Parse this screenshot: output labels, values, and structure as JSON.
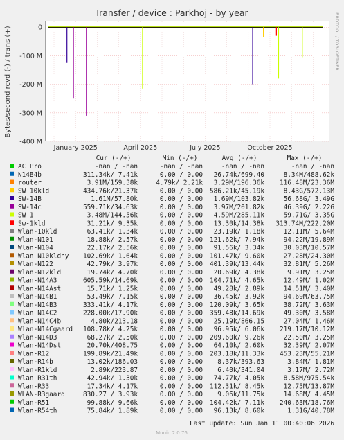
{
  "chart_data": {
    "type": "line",
    "title": "Transfer / device : Parkhoj - by year",
    "ylabel": "Bytes/second rcvd (-) / trans (+)",
    "ylim": [
      -400000000,
      20000000
    ],
    "yticks": [
      {
        "value": 0,
        "label": "0"
      },
      {
        "value": -100000000,
        "label": "-100 M"
      },
      {
        "value": -200000000,
        "label": "-200 M"
      },
      {
        "value": -300000000,
        "label": "-300 M"
      },
      {
        "value": -400000000,
        "label": "-400 M"
      }
    ],
    "xticks": [
      "January 2025",
      "April 2025",
      "July 2025",
      "October 2025"
    ],
    "side_text": "RRDTOOL / TOBI OETIKER",
    "footer": "Munin 2.0.76",
    "last_update": "Last update:  Sun Jan 11 00:40:06 2026",
    "columns": [
      "Cur (-/+)",
      "Min (-/+)",
      "Avg (-/+)",
      "Max (-/+)"
    ],
    "spikes": [
      {
        "series": "SW-14B",
        "month": 0.6,
        "value": -125000000
      },
      {
        "series": "SW-14c",
        "month": 0.9,
        "value": -250000000
      },
      {
        "series": "SW-14c",
        "month": 1.5,
        "value": -310000000
      },
      {
        "series": "SW-14B",
        "month": 9.2,
        "value": -200000000
      },
      {
        "series": "SW-1",
        "month": 4.1,
        "value": -215000000
      },
      {
        "series": "SW-1",
        "month": 10.4,
        "value": -180000000
      },
      {
        "series": "SW-1",
        "month": 11.5,
        "value": -105000000
      },
      {
        "series": "SW-10kld",
        "month": 9.7,
        "value": -35000000
      },
      {
        "series": "Sw-1kld",
        "month": 10.3,
        "value": -30000000
      }
    ],
    "series": [
      {
        "name": "AC Pro",
        "color": "#00cc00",
        "cur": "-nan / -nan",
        "min": "-nan / -nan",
        "avg": "-nan / -nan",
        "max": "-nan / -nan"
      },
      {
        "name": "N14B4b",
        "color": "#0066b3",
        "cur": "311.34k/ 7.41k",
        "min": "0.00 / 0.00",
        "avg": "26.74k/699.40",
        "max": "8.34M/488.62k"
      },
      {
        "name": "router",
        "color": "#ff8000",
        "cur": "3.91M/159.38k",
        "min": "4.79k/ 2.21k",
        "avg": "3.29M/196.36k",
        "max": "116.48M/23.36M"
      },
      {
        "name": "SW-10kld",
        "color": "#ffcc00",
        "cur": "434.76k/21.37k",
        "min": "0.00 / 0.00",
        "avg": "586.21k/45.19k",
        "max": "8.43G/572.13M"
      },
      {
        "name": "SW-14B",
        "color": "#330099",
        "cur": "1.61M/57.80k",
        "min": "0.00 / 0.00",
        "avg": "1.69M/103.82k",
        "max": "56.68G/ 3.49G"
      },
      {
        "name": "SW-14c",
        "color": "#990099",
        "cur": "559.71k/34.63k",
        "min": "0.00 / 0.00",
        "avg": "3.97M/201.82k",
        "max": "46.39G/ 2.22G"
      },
      {
        "name": "SW-1",
        "color": "#ccff00",
        "cur": "3.48M/144.56k",
        "min": "0.00 / 0.00",
        "avg": "4.59M/285.11k",
        "max": "59.71G/ 3.35G"
      },
      {
        "name": "Sw-1kld",
        "color": "#ff0000",
        "cur": "31.21k/ 9.35k",
        "min": "0.00 / 0.00",
        "avg": "13.30k/14.38k",
        "max": "313.74M/222.20M"
      },
      {
        "name": "Wlan-10kld",
        "color": "#808080",
        "cur": "63.41k/ 1.34k",
        "min": "0.00 / 0.00",
        "avg": "23.19k/ 1.18k",
        "max": "12.11M/ 5.64M"
      },
      {
        "name": "Wlan-N101",
        "color": "#008f00",
        "cur": "18.88k/ 2.57k",
        "min": "0.00 / 0.00",
        "avg": "121.62k/ 7.94k",
        "max": "94.22M/19.89M"
      },
      {
        "name": "Wlan-N104",
        "color": "#00487d",
        "cur": "22.17k/ 2.56k",
        "min": "0.00 / 0.00",
        "avg": "91.56k/ 3.34k",
        "max": "30.03M/10.57M"
      },
      {
        "name": "Wlan-N10kldny",
        "color": "#b35a00",
        "cur": "102.69k/ 1.64k",
        "min": "0.00 / 0.00",
        "avg": "101.47k/ 9.60k",
        "max": "27.28M/24.30M"
      },
      {
        "name": "Wlan-N122",
        "color": "#b38f00",
        "cur": "42.79k/ 3.97k",
        "min": "0.00 / 0.00",
        "avg": "401.39k/13.44k",
        "max": "32.81M/ 5.26M"
      },
      {
        "name": "Wlan-N12kld",
        "color": "#6b006b",
        "cur": "19.74k/ 4.70k",
        "min": "0.00 / 0.00",
        "avg": "20.69k/ 4.38k",
        "max": "9.91M/ 3.25M"
      },
      {
        "name": "Wlan-N14A3",
        "color": "#8fb300",
        "cur": "605.59k/14.69k",
        "min": "0.00 / 0.00",
        "avg": "104.71k/ 4.65k",
        "max": "12.49M/ 1.02M"
      },
      {
        "name": "Wlan-N14Ast",
        "color": "#b30000",
        "cur": "15.71k/ 1.25k",
        "min": "0.00 / 0.00",
        "avg": "49.28k/ 2.89k",
        "max": "14.51M/ 3.40M"
      },
      {
        "name": "Wlan-N14B1",
        "color": "#bebebe",
        "cur": "53.49k/ 7.15k",
        "min": "0.00 / 0.00",
        "avg": "36.45k/ 3.92k",
        "max": "94.69M/63.75M"
      },
      {
        "name": "Wlan-N14B3",
        "color": "#80ff80",
        "cur": "333.41k/ 4.17k",
        "min": "0.00 / 0.00",
        "avg": "120.09k/ 3.65k",
        "max": "38.72M/ 3.63M"
      },
      {
        "name": "Wlan-N14C2",
        "color": "#80c9ff",
        "cur": "228.00k/17.90k",
        "min": "0.00 / 0.00",
        "avg": "359.48k/14.69k",
        "max": "49.30M/ 3.58M"
      },
      {
        "name": "Wlan-N14C4b",
        "color": "#ffc080",
        "cur": "4.80k/213.18",
        "min": "0.00 / 0.00",
        "avg": "25.19k/866.15",
        "max": "27.04M/ 1.46M"
      },
      {
        "name": "Wlan-N14Cgaard",
        "color": "#ffe680",
        "cur": "108.78k/ 4.25k",
        "min": "0.00 / 0.00",
        "avg": "96.95k/ 6.06k",
        "max": "219.17M/10.12M"
      },
      {
        "name": "Wlan-N14D3",
        "color": "#aa80ff",
        "cur": "68.27k/ 2.50k",
        "min": "0.00 / 0.00",
        "avg": "209.60k/ 9.26k",
        "max": "22.50M/ 3.25M"
      },
      {
        "name": "Wlan-N14Dst",
        "color": "#ee00cc",
        "cur": "20.70k/408.75",
        "min": "0.00 / 0.00",
        "avg": "64.10k/ 2.60k",
        "max": "32.39M/ 2.07M"
      },
      {
        "name": "Wlan-R12",
        "color": "#ff8080",
        "cur": "199.89k/21.49k",
        "min": "0.00 / 0.00",
        "avg": "203.18k/11.33k",
        "max": "453.23M/55.21M"
      },
      {
        "name": "Wlan-R14b",
        "color": "#666600",
        "cur": "13.02k/186.03",
        "min": "0.00 / 0.00",
        "avg": "8.37k/393.63",
        "max": "3.84M/ 1.81M"
      },
      {
        "name": "Wlan-R1kld",
        "color": "#ffbfff",
        "cur": "2.89k/223.87",
        "min": "0.00 / 0.00",
        "avg": "6.40k/341.04",
        "max": "3.17M/ 2.72M"
      },
      {
        "name": "Wlan-R31th",
        "color": "#00ffcc",
        "cur": "42.94k/ 1.30k",
        "min": "0.00 / 0.00",
        "avg": "74.77k/ 4.05k",
        "max": "8.58M/975.54k"
      },
      {
        "name": "Wlan-R33",
        "color": "#cc6699",
        "cur": "17.34k/ 4.17k",
        "min": "0.00 / 0.00",
        "avg": "112.31k/ 8.45k",
        "max": "12.75M/13.87M"
      },
      {
        "name": "WLAN-R3gaard",
        "color": "#999900",
        "cur": "830.27 / 3.93k",
        "min": "0.00 / 0.00",
        "avg": "9.06k/11.75k",
        "max": "14.68M/ 4.45M"
      },
      {
        "name": "Wlan-R51",
        "color": "#00cc00",
        "cur": "99.88k/ 9.66k",
        "min": "0.00 / 0.00",
        "avg": "104.42k/ 7.11k",
        "max": "240.63M/18.76M"
      },
      {
        "name": "Wlan-R54th",
        "color": "#0066b3",
        "cur": "75.84k/ 1.89k",
        "min": "0.00 / 0.00",
        "avg": "96.13k/ 8.60k",
        "max": "1.31G/40.78M"
      }
    ]
  }
}
